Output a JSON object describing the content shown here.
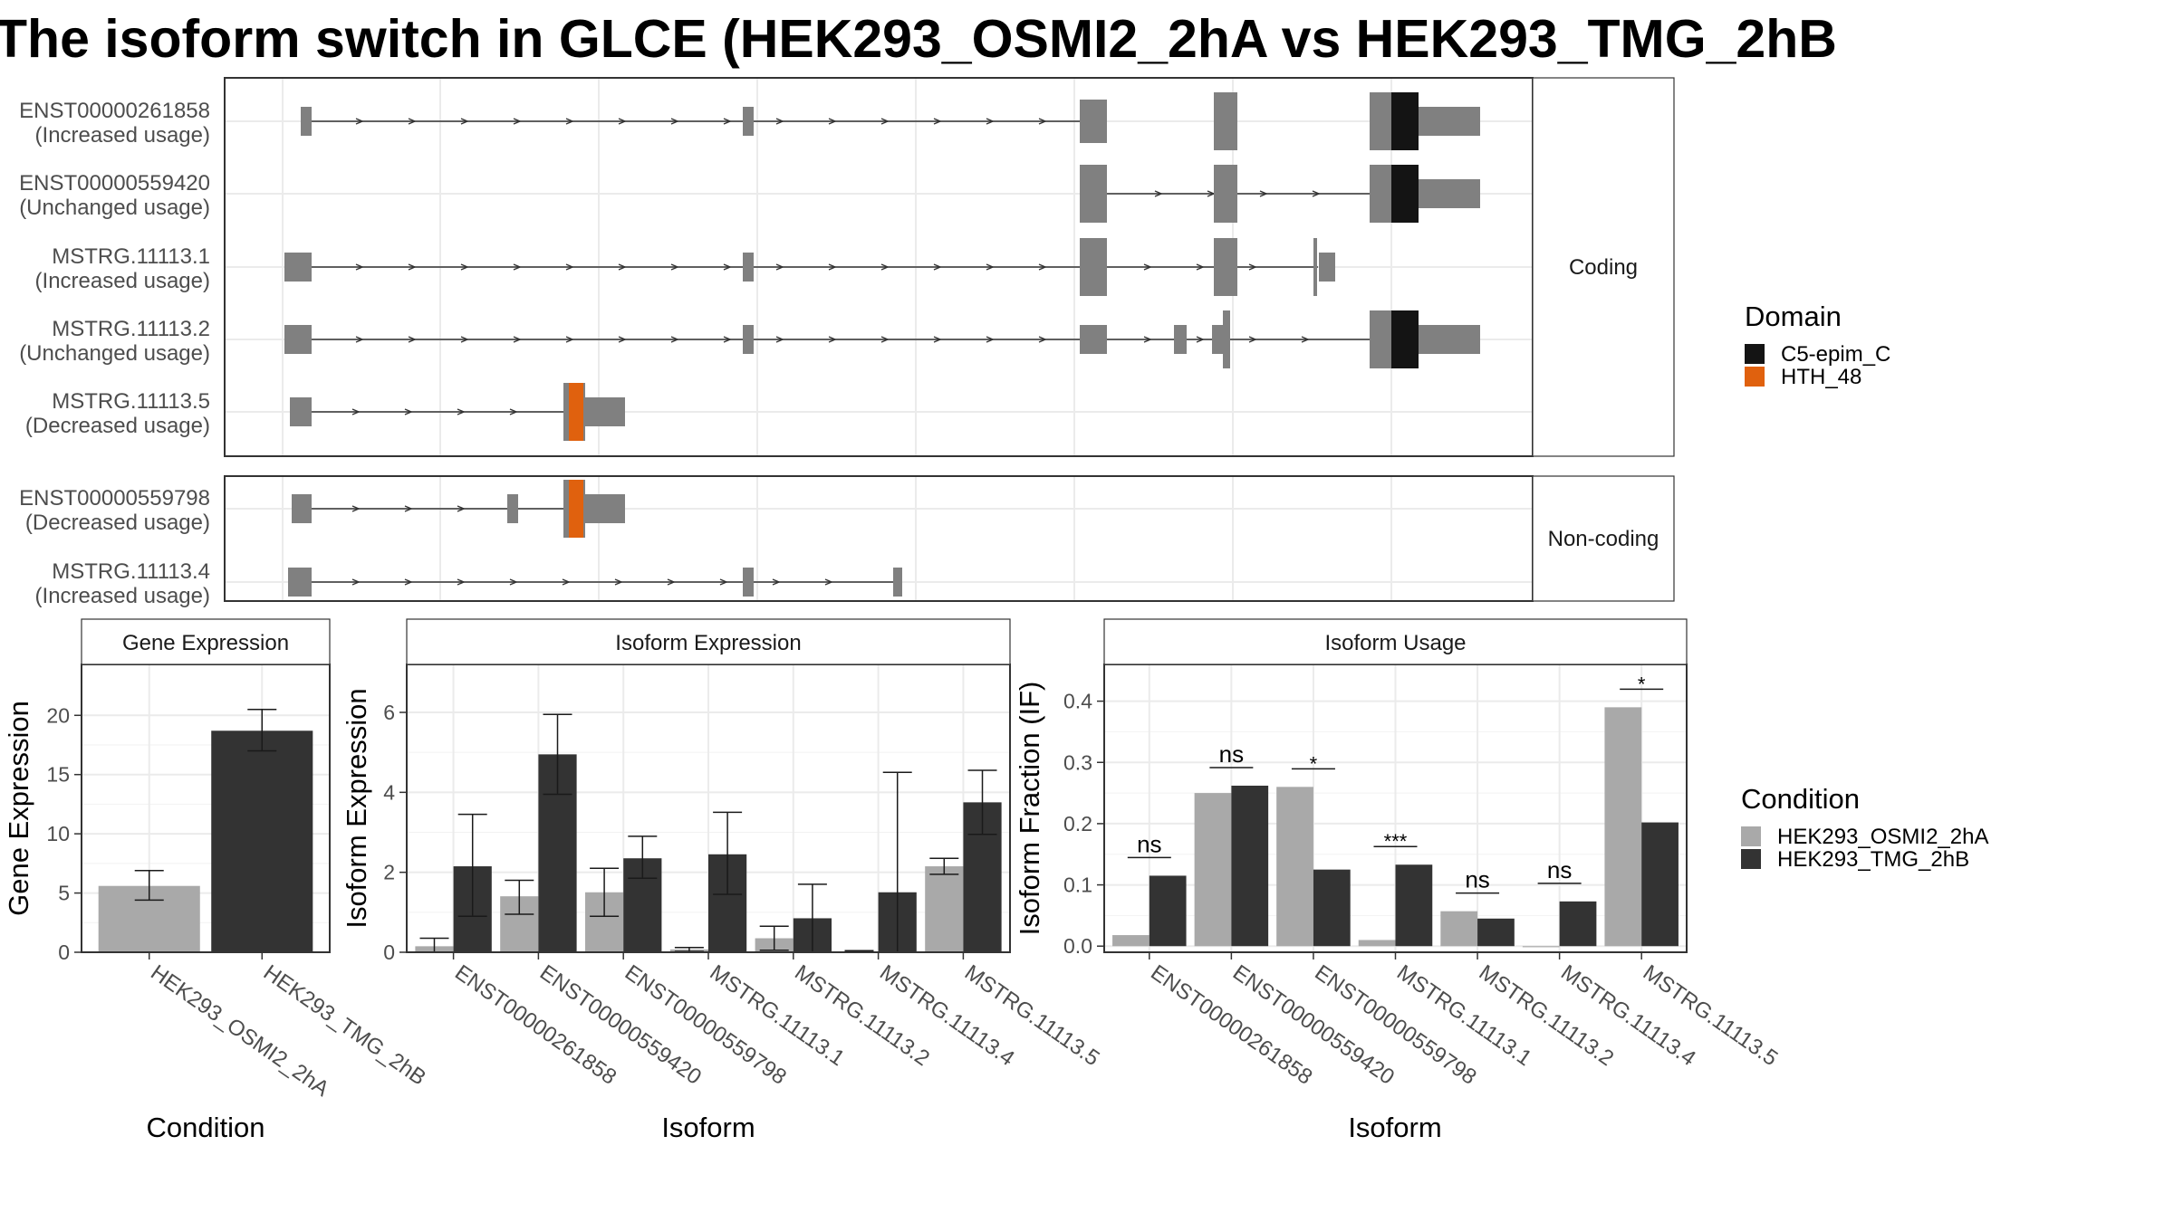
{
  "title": "The isoform switch in GLCE (HEK293_OSMI2_2hA vs HEK293_TMG_2hB",
  "colors": {
    "exon": "#808080",
    "cds": "#7f7f7f",
    "domain_c5": "#141414",
    "domain_hth": "#e0610e",
    "cond_a": "#a9a9a9",
    "cond_b": "#333333"
  },
  "structure": {
    "groups": [
      {
        "label": "Coding",
        "transcripts": [
          {
            "name": "ENST00000261858",
            "usage": "(Increased usage)"
          },
          {
            "name": "ENST00000559420",
            "usage": "(Unchanged usage)"
          },
          {
            "name": "MSTRG.11113.1",
            "usage": "(Increased usage)"
          },
          {
            "name": "MSTRG.11113.2",
            "usage": "(Unchanged usage)"
          },
          {
            "name": "MSTRG.11113.5",
            "usage": "(Decreased usage)"
          }
        ]
      },
      {
        "label": "Non-coding",
        "transcripts": [
          {
            "name": "ENST00000559798",
            "usage": "(Decreased usage)"
          },
          {
            "name": "MSTRG.11113.4",
            "usage": "(Increased usage)"
          }
        ]
      }
    ]
  },
  "legends": {
    "domain": {
      "title": "Domain",
      "items": [
        {
          "label": "C5-epim_C",
          "color": "#141414"
        },
        {
          "label": "HTH_48",
          "color": "#e0610e"
        }
      ]
    },
    "condition": {
      "title": "Condition",
      "items": [
        {
          "label": "HEK293_OSMI2_2hA",
          "color": "#a9a9a9"
        },
        {
          "label": "HEK293_TMG_2hB",
          "color": "#333333"
        }
      ]
    }
  },
  "chart_data": [
    {
      "type": "bar",
      "title": "Gene Expression",
      "xlabel": "Condition",
      "ylabel": "Gene Expression",
      "categories": [
        "HEK293_OSMI2_2hA",
        "HEK293_TMG_2hB"
      ],
      "values": [
        5.6,
        18.7
      ],
      "error": [
        [
          4.4,
          6.9
        ],
        [
          17.0,
          20.5
        ]
      ],
      "ylim": [
        0,
        24.3
      ],
      "yticks": [
        0,
        5,
        10,
        15,
        20
      ],
      "grid": true
    },
    {
      "type": "bar",
      "title": "Isoform Expression",
      "xlabel": "Isoform",
      "ylabel": "Isoform Expression",
      "categories": [
        "ENST00000261858",
        "ENST00000559420",
        "ENST00000559798",
        "MSTRG.11113.1",
        "MSTRG.11113.2",
        "MSTRG.11113.4",
        "MSTRG.11113.5"
      ],
      "series": [
        {
          "name": "HEK293_OSMI2_2hA",
          "values": [
            0.15,
            1.4,
            1.5,
            0.07,
            0.35,
            0.02,
            2.15
          ],
          "error": [
            [
              0,
              0.35
            ],
            [
              0.95,
              1.8
            ],
            [
              0.9,
              2.1
            ],
            [
              0.02,
              0.12
            ],
            [
              0.05,
              0.65
            ],
            [
              0,
              0.04
            ],
            [
              1.95,
              2.35
            ]
          ]
        },
        {
          "name": "HEK293_TMG_2hB",
          "values": [
            2.15,
            4.95,
            2.35,
            2.45,
            0.85,
            1.5,
            3.75
          ],
          "error": [
            [
              0.9,
              3.45
            ],
            [
              3.95,
              5.95
            ],
            [
              1.85,
              2.9
            ],
            [
              1.45,
              3.5
            ],
            [
              0,
              1.7
            ],
            [
              0,
              4.5
            ],
            [
              2.95,
              4.55
            ]
          ]
        }
      ],
      "ylim": [
        0,
        7.2
      ],
      "yticks": [
        0,
        2,
        4,
        6
      ],
      "grid": true
    },
    {
      "type": "bar",
      "title": "Isoform Usage",
      "xlabel": "Isoform",
      "ylabel": "Isoform Fraction (IF)",
      "categories": [
        "ENST00000261858",
        "ENST00000559420",
        "ENST00000559798",
        "MSTRG.11113.1",
        "MSTRG.11113.2",
        "MSTRG.11113.4",
        "MSTRG.11113.5"
      ],
      "series": [
        {
          "name": "HEK293_OSMI2_2hA",
          "values": [
            0.018,
            0.25,
            0.26,
            0.01,
            0.057,
            0.0,
            0.39
          ]
        },
        {
          "name": "HEK293_TMG_2hB",
          "values": [
            0.115,
            0.262,
            0.125,
            0.133,
            0.045,
            0.073,
            0.202
          ]
        }
      ],
      "significance": [
        "ns",
        "ns",
        "*",
        "***",
        "ns",
        "ns",
        "*"
      ],
      "ylim": [
        -0.01,
        0.46
      ],
      "yticks": [
        0.0,
        0.1,
        0.2,
        0.3,
        0.4
      ],
      "grid": true
    }
  ]
}
